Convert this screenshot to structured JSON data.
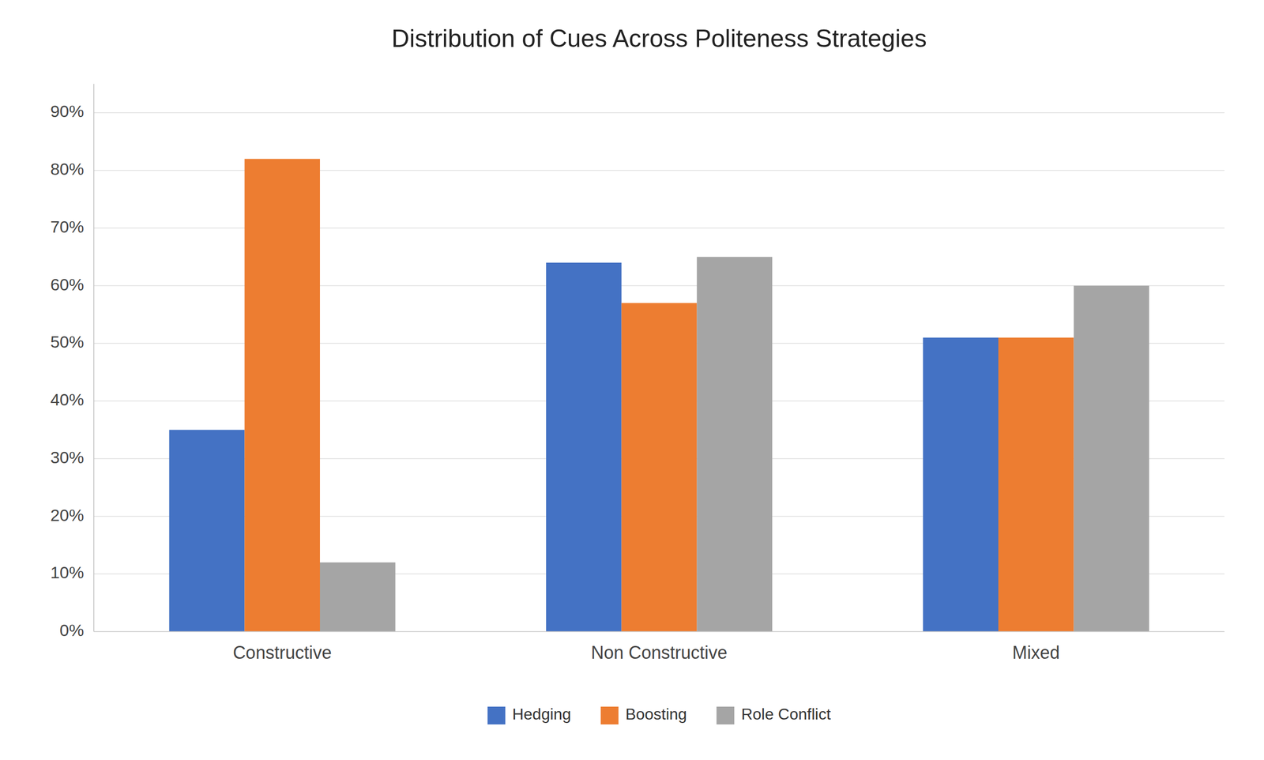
{
  "chart_data": {
    "type": "bar",
    "title": "Distribution of Cues Across Politeness Strategies",
    "categories": [
      "Constructive",
      "Non Constructive",
      "Mixed"
    ],
    "series": [
      {
        "name": "Hedging",
        "color": "#4472C4",
        "values": [
          0.35,
          0.64,
          0.51
        ]
      },
      {
        "name": "Boosting",
        "color": "#ED7D31",
        "values": [
          0.82,
          0.57,
          0.51
        ]
      },
      {
        "name": "Role Conflict",
        "color": "#A5A5A5",
        "values": [
          0.12,
          0.65,
          0.6
        ]
      }
    ],
    "ylim": [
      0,
      0.95
    ],
    "yticks": [
      {
        "value": 0.0,
        "label": "0%"
      },
      {
        "value": 0.1,
        "label": "10%"
      },
      {
        "value": 0.2,
        "label": "20%"
      },
      {
        "value": 0.3,
        "label": "30%"
      },
      {
        "value": 0.4,
        "label": "40%"
      },
      {
        "value": 0.5,
        "label": "50%"
      },
      {
        "value": 0.6,
        "label": "60%"
      },
      {
        "value": 0.7,
        "label": "70%"
      },
      {
        "value": 0.8,
        "label": "80%"
      },
      {
        "value": 0.9,
        "label": "90%"
      }
    ],
    "grid": true,
    "legend": "bottom"
  }
}
